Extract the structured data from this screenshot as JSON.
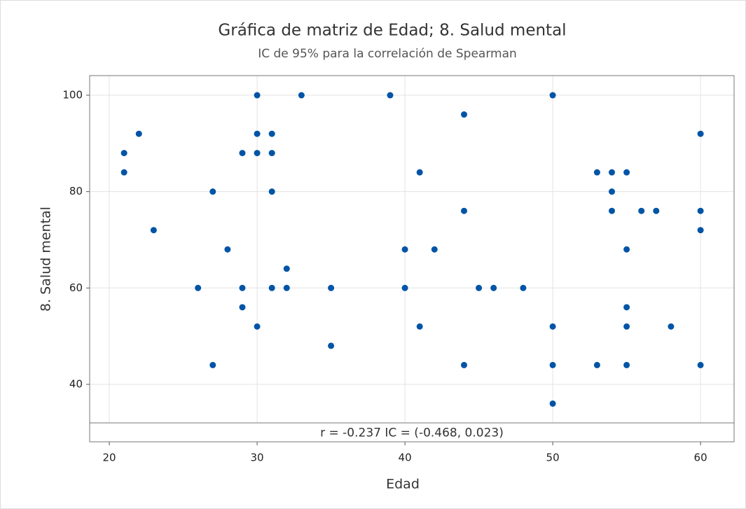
{
  "chart_data": {
    "type": "scatter",
    "title": "Gráfica de matriz de Edad; 8. Salud mental",
    "subtitle": "IC de 95% para la correlación de Spearman",
    "x_label": "Edad",
    "y_label": "8. Salud mental",
    "annotation": "r = -0.237  IC = (-0.468, 0.023)",
    "color": "#0054a6",
    "grid": true,
    "xlim": [
      18.67,
      62.27
    ],
    "ylim": [
      28.08,
      104.07
    ],
    "xticks": [
      20,
      30,
      40,
      50,
      60
    ],
    "yticks": [
      40,
      60,
      80,
      100
    ],
    "x": [
      21,
      21,
      22,
      23,
      26,
      27,
      27,
      28,
      29,
      29,
      29,
      30,
      30,
      30,
      30,
      31,
      31,
      31,
      31,
      32,
      32,
      33,
      35,
      35,
      39,
      40,
      40,
      41,
      41,
      42,
      44,
      44,
      44,
      45,
      46,
      48,
      50,
      50,
      50,
      50,
      53,
      53,
      54,
      54,
      54,
      55,
      55,
      55,
      55,
      55,
      56,
      57,
      58,
      60,
      60,
      60,
      60
    ],
    "y": [
      88,
      84,
      92,
      72,
      60,
      80,
      44,
      68,
      88,
      60,
      56,
      100,
      92,
      88,
      52,
      92,
      88,
      80,
      60,
      64,
      60,
      100,
      60,
      48,
      100,
      68,
      60,
      84,
      52,
      68,
      96,
      76,
      44,
      60,
      60,
      60,
      100,
      52,
      44,
      36,
      84,
      44,
      84,
      80,
      76,
      84,
      68,
      56,
      52,
      44,
      76,
      76,
      52,
      92,
      76,
      72,
      44
    ]
  }
}
